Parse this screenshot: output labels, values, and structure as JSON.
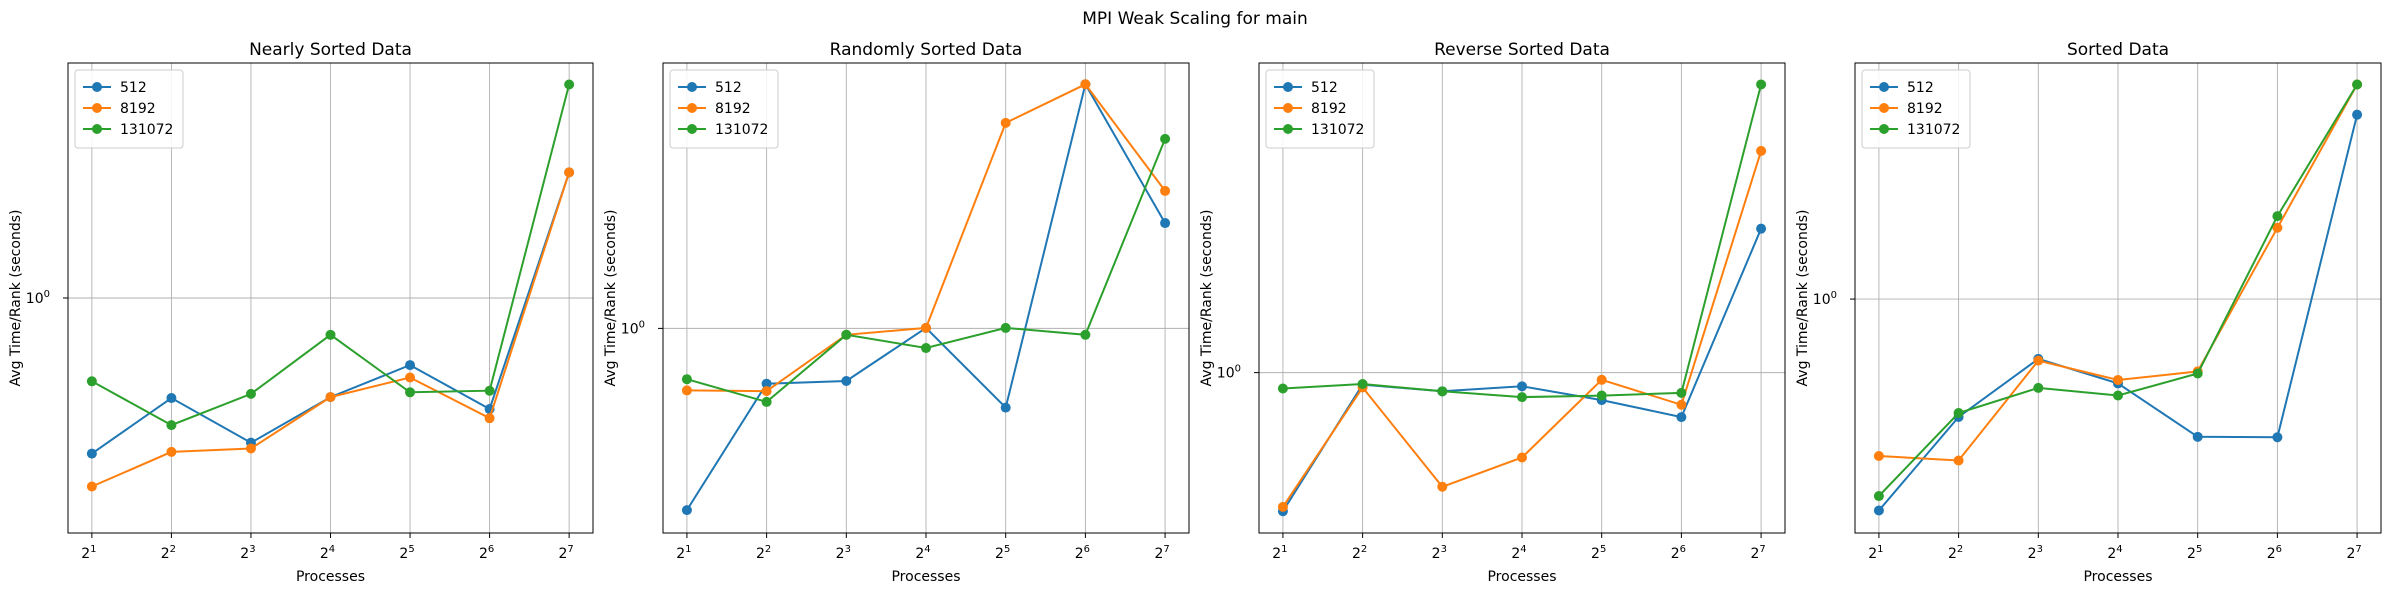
{
  "suptitle": "MPI Weak Scaling for main",
  "colors": {
    "512": "#1f77b4",
    "8192": "#ff7f0e",
    "131072": "#2ca02c",
    "grid": "#b0b0b0"
  },
  "chart_data": [
    {
      "type": "line",
      "title": "Nearly Sorted Data",
      "xlabel": "Processes",
      "ylabel": "Avg Time/Rank (seconds)",
      "xscale": "log2",
      "yscale": "log",
      "x": [
        2,
        4,
        8,
        16,
        32,
        64,
        128
      ],
      "x_tick_exponents": [
        "1",
        "2",
        "3",
        "4",
        "5",
        "6",
        "7"
      ],
      "y_tick_label": "10",
      "y_tick_exponent": "0",
      "ylim": [
        0.33,
        3.03
      ],
      "grid": true,
      "legend": "top-left",
      "series": [
        {
          "name": "512",
          "values": [
            0.446,
            0.595,
            0.472,
            0.598,
            0.706,
            0.562,
            1.919
          ]
        },
        {
          "name": "8192",
          "values": [
            0.376,
            0.45,
            0.458,
            0.598,
            0.662,
            0.536,
            1.919
          ]
        },
        {
          "name": "131072",
          "values": [
            0.649,
            0.517,
            0.608,
            0.826,
            0.613,
            0.618,
            3.028
          ]
        }
      ]
    },
    {
      "type": "line",
      "title": "Randomly Sorted Data",
      "xlabel": "Processes",
      "ylabel": "Avg Time/Rank (seconds)",
      "xscale": "log2",
      "yscale": "log",
      "x": [
        2,
        4,
        8,
        16,
        32,
        64,
        128
      ],
      "x_tick_exponents": [
        "1",
        "2",
        "3",
        "4",
        "5",
        "6",
        "7"
      ],
      "y_tick_label": "10",
      "y_tick_exponent": "0",
      "ylim": [
        0.32,
        4.56
      ],
      "grid": true,
      "legend": "top-left",
      "series": [
        {
          "name": "512",
          "values": [
            0.323,
            0.709,
            0.721,
            1.003,
            0.611,
            4.563,
            1.925
          ]
        },
        {
          "name": "8192",
          "values": [
            0.68,
            0.677,
            0.961,
            1.003,
            3.589,
            4.563,
            2.351
          ]
        },
        {
          "name": "131072",
          "values": [
            0.729,
            0.633,
            0.961,
            0.885,
            1.003,
            0.961,
            3.249
          ]
        }
      ]
    },
    {
      "type": "line",
      "title": "Reverse Sorted Data",
      "xlabel": "Processes",
      "ylabel": "Avg Time/Rank (seconds)",
      "xscale": "log2",
      "yscale": "log",
      "x": [
        2,
        4,
        8,
        16,
        32,
        64,
        128
      ],
      "x_tick_exponents": [
        "1",
        "2",
        "3",
        "4",
        "5",
        "6",
        "7"
      ],
      "y_tick_label": "10",
      "y_tick_exponent": "0",
      "ylim": [
        0.5,
        4.21
      ],
      "grid": true,
      "legend": "top-left",
      "series": [
        {
          "name": "512",
          "values": [
            0.501,
            0.942,
            0.911,
            0.934,
            0.872,
            0.801,
            2.05
          ]
        },
        {
          "name": "8192",
          "values": [
            0.512,
            0.929,
            0.566,
            0.655,
            0.965,
            0.852,
            3.021
          ]
        },
        {
          "name": "131072",
          "values": [
            0.924,
            0.945,
            0.911,
            0.885,
            0.892,
            0.904,
            4.208
          ]
        }
      ]
    },
    {
      "type": "line",
      "title": "Sorted Data",
      "xlabel": "Processes",
      "ylabel": "Avg Time/Rank (seconds)",
      "xscale": "log2",
      "yscale": "log",
      "x": [
        2,
        4,
        8,
        16,
        32,
        64,
        128
      ],
      "x_tick_exponents": [
        "1",
        "2",
        "3",
        "4",
        "5",
        "6",
        "7"
      ],
      "y_tick_label": "10",
      "y_tick_exponent": "0",
      "ylim": [
        0.37,
        2.73
      ],
      "grid": true,
      "legend": "top-left",
      "series": [
        {
          "name": "512",
          "values": [
            0.372,
            0.576,
            0.756,
            0.674,
            0.525,
            0.524,
            2.369
          ]
        },
        {
          "name": "8192",
          "values": [
            0.48,
            0.47,
            0.75,
            0.685,
            0.713,
            1.396,
            2.728
          ]
        },
        {
          "name": "131072",
          "values": [
            0.398,
            0.587,
            0.66,
            0.637,
            0.706,
            1.474,
            2.728
          ]
        }
      ]
    }
  ]
}
